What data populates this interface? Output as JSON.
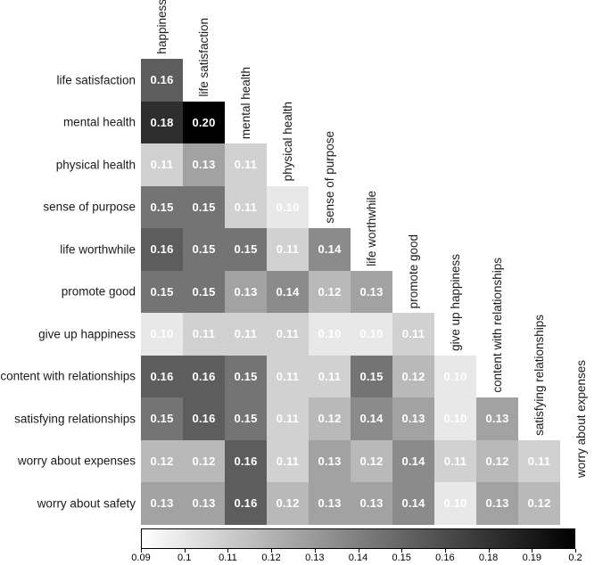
{
  "chart_data": {
    "type": "heatmap",
    "title": "",
    "xlabel": "",
    "ylabel": "",
    "legend_position": "bottom",
    "grid": false,
    "columns": [
      "happiness",
      "life satisfaction",
      "mental health",
      "physical health",
      "sense of purpose",
      "life worthwhile",
      "promote good",
      "give up happiness",
      "content with relationships",
      "satisfying relationships",
      "worry about expenses"
    ],
    "rows": [
      {
        "label": "life satisfaction",
        "values": [
          "0.16"
        ]
      },
      {
        "label": "mental health",
        "values": [
          "0.18",
          "0.20"
        ]
      },
      {
        "label": "physical health",
        "values": [
          "0.11",
          "0.13",
          "0.11"
        ]
      },
      {
        "label": "sense of purpose",
        "values": [
          "0.15",
          "0.15",
          "0.11",
          "0.10"
        ]
      },
      {
        "label": "life worthwhile",
        "values": [
          "0.16",
          "0.15",
          "0.15",
          "0.11",
          "0.14"
        ]
      },
      {
        "label": "promote good",
        "values": [
          "0.15",
          "0.15",
          "0.13",
          "0.14",
          "0.12",
          "0.13"
        ]
      },
      {
        "label": "give up happiness",
        "values": [
          "0.10",
          "0.11",
          "0.11",
          "0.11",
          "0.10",
          "0.10",
          "0.11"
        ]
      },
      {
        "label": "content with relationships",
        "values": [
          "0.16",
          "0.16",
          "0.15",
          "0.11",
          "0.11",
          "0.15",
          "0.12",
          "0.10"
        ]
      },
      {
        "label": "satisfying relationships",
        "values": [
          "0.15",
          "0.16",
          "0.15",
          "0.11",
          "0.12",
          "0.14",
          "0.13",
          "0.10",
          "0.13"
        ]
      },
      {
        "label": "worry about expenses",
        "values": [
          "0.12",
          "0.12",
          "0.16",
          "0.11",
          "0.13",
          "0.12",
          "0.14",
          "0.11",
          "0.12",
          "0.11"
        ]
      },
      {
        "label": "worry about safety",
        "values": [
          "0.13",
          "0.13",
          "0.16",
          "0.12",
          "0.13",
          "0.13",
          "0.14",
          "0.10",
          "0.13",
          "0.12"
        ]
      }
    ],
    "color_scale": {
      "min": 0.09,
      "max": 0.2,
      "min_color": "#ffffff",
      "max_color": "#000000"
    },
    "colorbar_ticks": [
      "0.09",
      "0.1",
      "0.11",
      "0.12",
      "0.13",
      "0.14",
      "0.15",
      "0.16",
      "0.18",
      "0.19",
      "0.2"
    ]
  }
}
